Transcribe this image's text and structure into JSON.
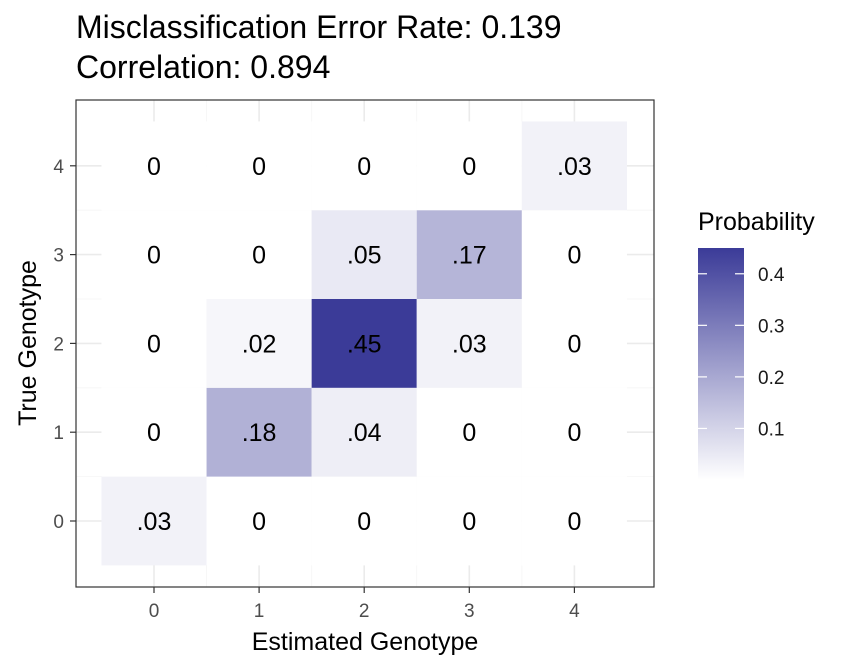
{
  "chart_data": {
    "type": "heatmap",
    "title_lines": [
      "Misclassification Error Rate: 0.139",
      "Correlation: 0.894"
    ],
    "xlabel": "Estimated Genotype",
    "ylabel": "True Genotype",
    "x_categories": [
      "0",
      "1",
      "2",
      "3",
      "4"
    ],
    "y_categories": [
      "0",
      "1",
      "2",
      "3",
      "4"
    ],
    "cells": [
      {
        "x": "0",
        "y": "0",
        "value": 0.03,
        "label": ".03"
      },
      {
        "x": "1",
        "y": "0",
        "value": 0,
        "label": "0"
      },
      {
        "x": "2",
        "y": "0",
        "value": 0,
        "label": "0"
      },
      {
        "x": "3",
        "y": "0",
        "value": 0,
        "label": "0"
      },
      {
        "x": "4",
        "y": "0",
        "value": 0,
        "label": "0"
      },
      {
        "x": "0",
        "y": "1",
        "value": 0,
        "label": "0"
      },
      {
        "x": "1",
        "y": "1",
        "value": 0.18,
        "label": ".18"
      },
      {
        "x": "2",
        "y": "1",
        "value": 0.04,
        "label": ".04"
      },
      {
        "x": "3",
        "y": "1",
        "value": 0,
        "label": "0"
      },
      {
        "x": "4",
        "y": "1",
        "value": 0,
        "label": "0"
      },
      {
        "x": "0",
        "y": "2",
        "value": 0,
        "label": "0"
      },
      {
        "x": "1",
        "y": "2",
        "value": 0.02,
        "label": ".02"
      },
      {
        "x": "2",
        "y": "2",
        "value": 0.45,
        "label": ".45"
      },
      {
        "x": "3",
        "y": "2",
        "value": 0.03,
        "label": ".03"
      },
      {
        "x": "4",
        "y": "2",
        "value": 0,
        "label": "0"
      },
      {
        "x": "0",
        "y": "3",
        "value": 0,
        "label": "0"
      },
      {
        "x": "1",
        "y": "3",
        "value": 0,
        "label": "0"
      },
      {
        "x": "2",
        "y": "3",
        "value": 0.05,
        "label": ".05"
      },
      {
        "x": "3",
        "y": "3",
        "value": 0.17,
        "label": ".17"
      },
      {
        "x": "4",
        "y": "3",
        "value": 0,
        "label": "0"
      },
      {
        "x": "0",
        "y": "4",
        "value": 0,
        "label": "0"
      },
      {
        "x": "1",
        "y": "4",
        "value": 0,
        "label": "0"
      },
      {
        "x": "2",
        "y": "4",
        "value": 0,
        "label": "0"
      },
      {
        "x": "3",
        "y": "4",
        "value": 0,
        "label": "0"
      },
      {
        "x": "4",
        "y": "4",
        "value": 0.03,
        "label": ".03"
      }
    ],
    "legend": {
      "title": "Probability",
      "ticks": [
        0.1,
        0.2,
        0.3,
        0.4
      ],
      "tick_labels": [
        "0.1",
        "0.2",
        "0.3",
        "0.4"
      ],
      "range": [
        0,
        0.45
      ],
      "low_color": "#ffffff",
      "high_color": "#3b3b98"
    },
    "grid": true,
    "legend_position": "right"
  }
}
